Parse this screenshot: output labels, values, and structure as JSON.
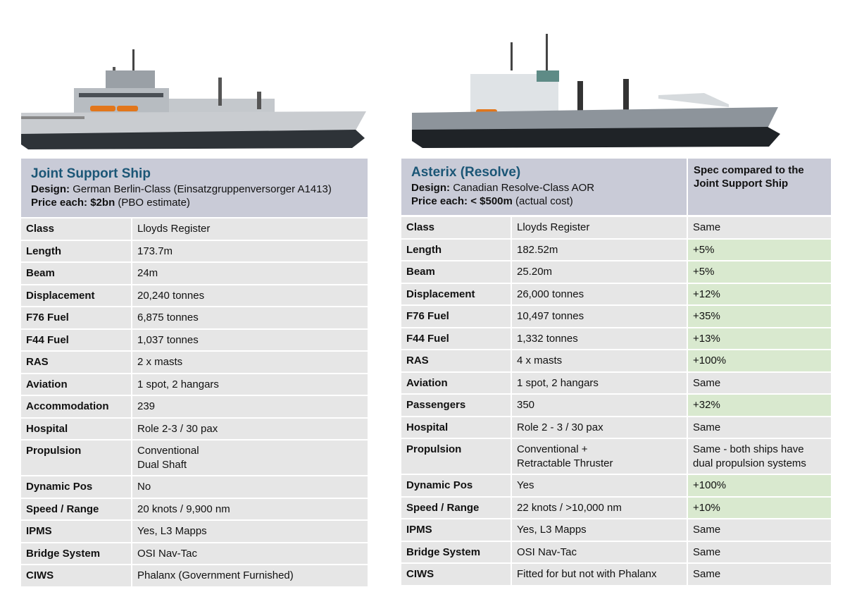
{
  "left": {
    "title": "Joint Support Ship",
    "design_label": "Design:",
    "design": "German Berlin-Class (Einsatzgruppenversorger A1413)",
    "price_label": "Price each:",
    "price": "$2bn",
    "price_note": "(PBO estimate)",
    "rows": [
      [
        "Class",
        "Lloyds Register"
      ],
      [
        "Length",
        "173.7m"
      ],
      [
        "Beam",
        "24m"
      ],
      [
        "Displacement",
        "20,240 tonnes"
      ],
      [
        "F76 Fuel",
        "6,875 tonnes"
      ],
      [
        "F44 Fuel",
        "1,037 tonnes"
      ],
      [
        "RAS",
        "2 x masts"
      ],
      [
        "Aviation",
        "1 spot, 2 hangars"
      ],
      [
        "Accommodation",
        "239"
      ],
      [
        "Hospital",
        "Role 2-3 / 30 pax"
      ],
      [
        "Propulsion",
        "Conventional\nDual Shaft"
      ],
      [
        "Dynamic Pos",
        "No"
      ],
      [
        "Speed / Range",
        "20 knots / 9,900 nm"
      ],
      [
        "IPMS",
        "Yes, L3 Mapps"
      ],
      [
        "Bridge System",
        "OSI Nav-Tac"
      ],
      [
        "CIWS",
        "Phalanx (Government Furnished)"
      ]
    ]
  },
  "right": {
    "title": "Asterix (Resolve)",
    "design_label": "Design:",
    "design": "Canadian Resolve-Class AOR",
    "price_label": "Price each:",
    "price": "< $500m",
    "price_note": "(actual cost)",
    "compare_header": "Spec compared to the Joint Support Ship",
    "rows": [
      [
        "Class",
        "Lloyds Register",
        "Same"
      ],
      [
        "Length",
        "182.52m",
        "+5%"
      ],
      [
        "Beam",
        "25.20m",
        "+5%"
      ],
      [
        "Displacement",
        "26,000 tonnes",
        "+12%"
      ],
      [
        "F76 Fuel",
        "10,497 tonnes",
        "+35%"
      ],
      [
        "F44 Fuel",
        "1,332 tonnes",
        "+13%"
      ],
      [
        "RAS",
        "4 x masts",
        "+100%"
      ],
      [
        "Aviation",
        "1 spot, 2 hangars",
        "Same"
      ],
      [
        "Passengers",
        "350",
        "+32%"
      ],
      [
        "Hospital",
        "Role 2 - 3 / 30 pax",
        "Same"
      ],
      [
        "Propulsion",
        "Conventional +\nRetractable Thruster",
        "Same - both ships have dual propulsion systems"
      ],
      [
        "Dynamic Pos",
        "Yes",
        "+100%"
      ],
      [
        "Speed / Range",
        "22 knots / >10,000 nm",
        "+10%"
      ],
      [
        "IPMS",
        "Yes, L3 Mapps",
        "Same"
      ],
      [
        "Bridge System",
        "OSI Nav-Tac",
        "Same"
      ],
      [
        "CIWS",
        "Fitted for but not with Phalanx",
        "Same"
      ]
    ],
    "highlight": [
      false,
      true,
      true,
      true,
      true,
      true,
      true,
      false,
      true,
      false,
      false,
      true,
      true,
      false,
      false,
      false
    ],
    "highlight_color": "#d9e9cf"
  }
}
